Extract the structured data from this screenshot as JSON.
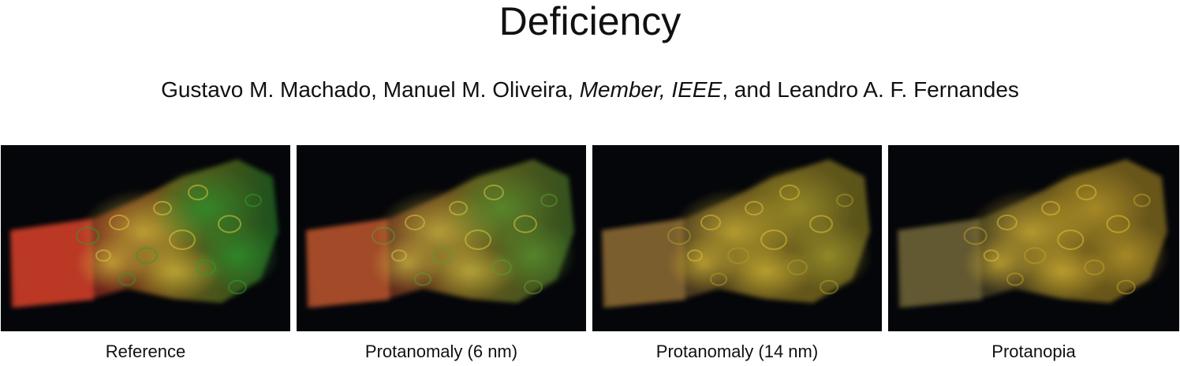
{
  "paper": {
    "title_fragment": "Deficiency",
    "authors": {
      "part1": "Gustavo M. Machado, Manuel M. Oliveira, ",
      "affiliation": "Member, IEEE",
      "part2": ", and Leandro A. F. Fernandes"
    }
  },
  "figure": {
    "panels": [
      {
        "caption": "Reference",
        "colors": {
          "front": "#d2402a",
          "mid": "#c9a028",
          "back": "#2e9a2e",
          "glow": "#e0c640"
        }
      },
      {
        "caption": "Protanomaly (6 nm)",
        "colors": {
          "front": "#b8552e",
          "mid": "#c2a22c",
          "back": "#5c9a30",
          "glow": "#d8c444"
        }
      },
      {
        "caption": "Protanomaly (14 nm)",
        "colors": {
          "front": "#8c6a32",
          "mid": "#c6a62a",
          "back": "#a89c2c",
          "glow": "#dcc038"
        }
      },
      {
        "caption": "Protanopia",
        "colors": {
          "front": "#6e6436",
          "mid": "#c8a42a",
          "back": "#c09e2a",
          "glow": "#e0bc36"
        }
      }
    ]
  }
}
